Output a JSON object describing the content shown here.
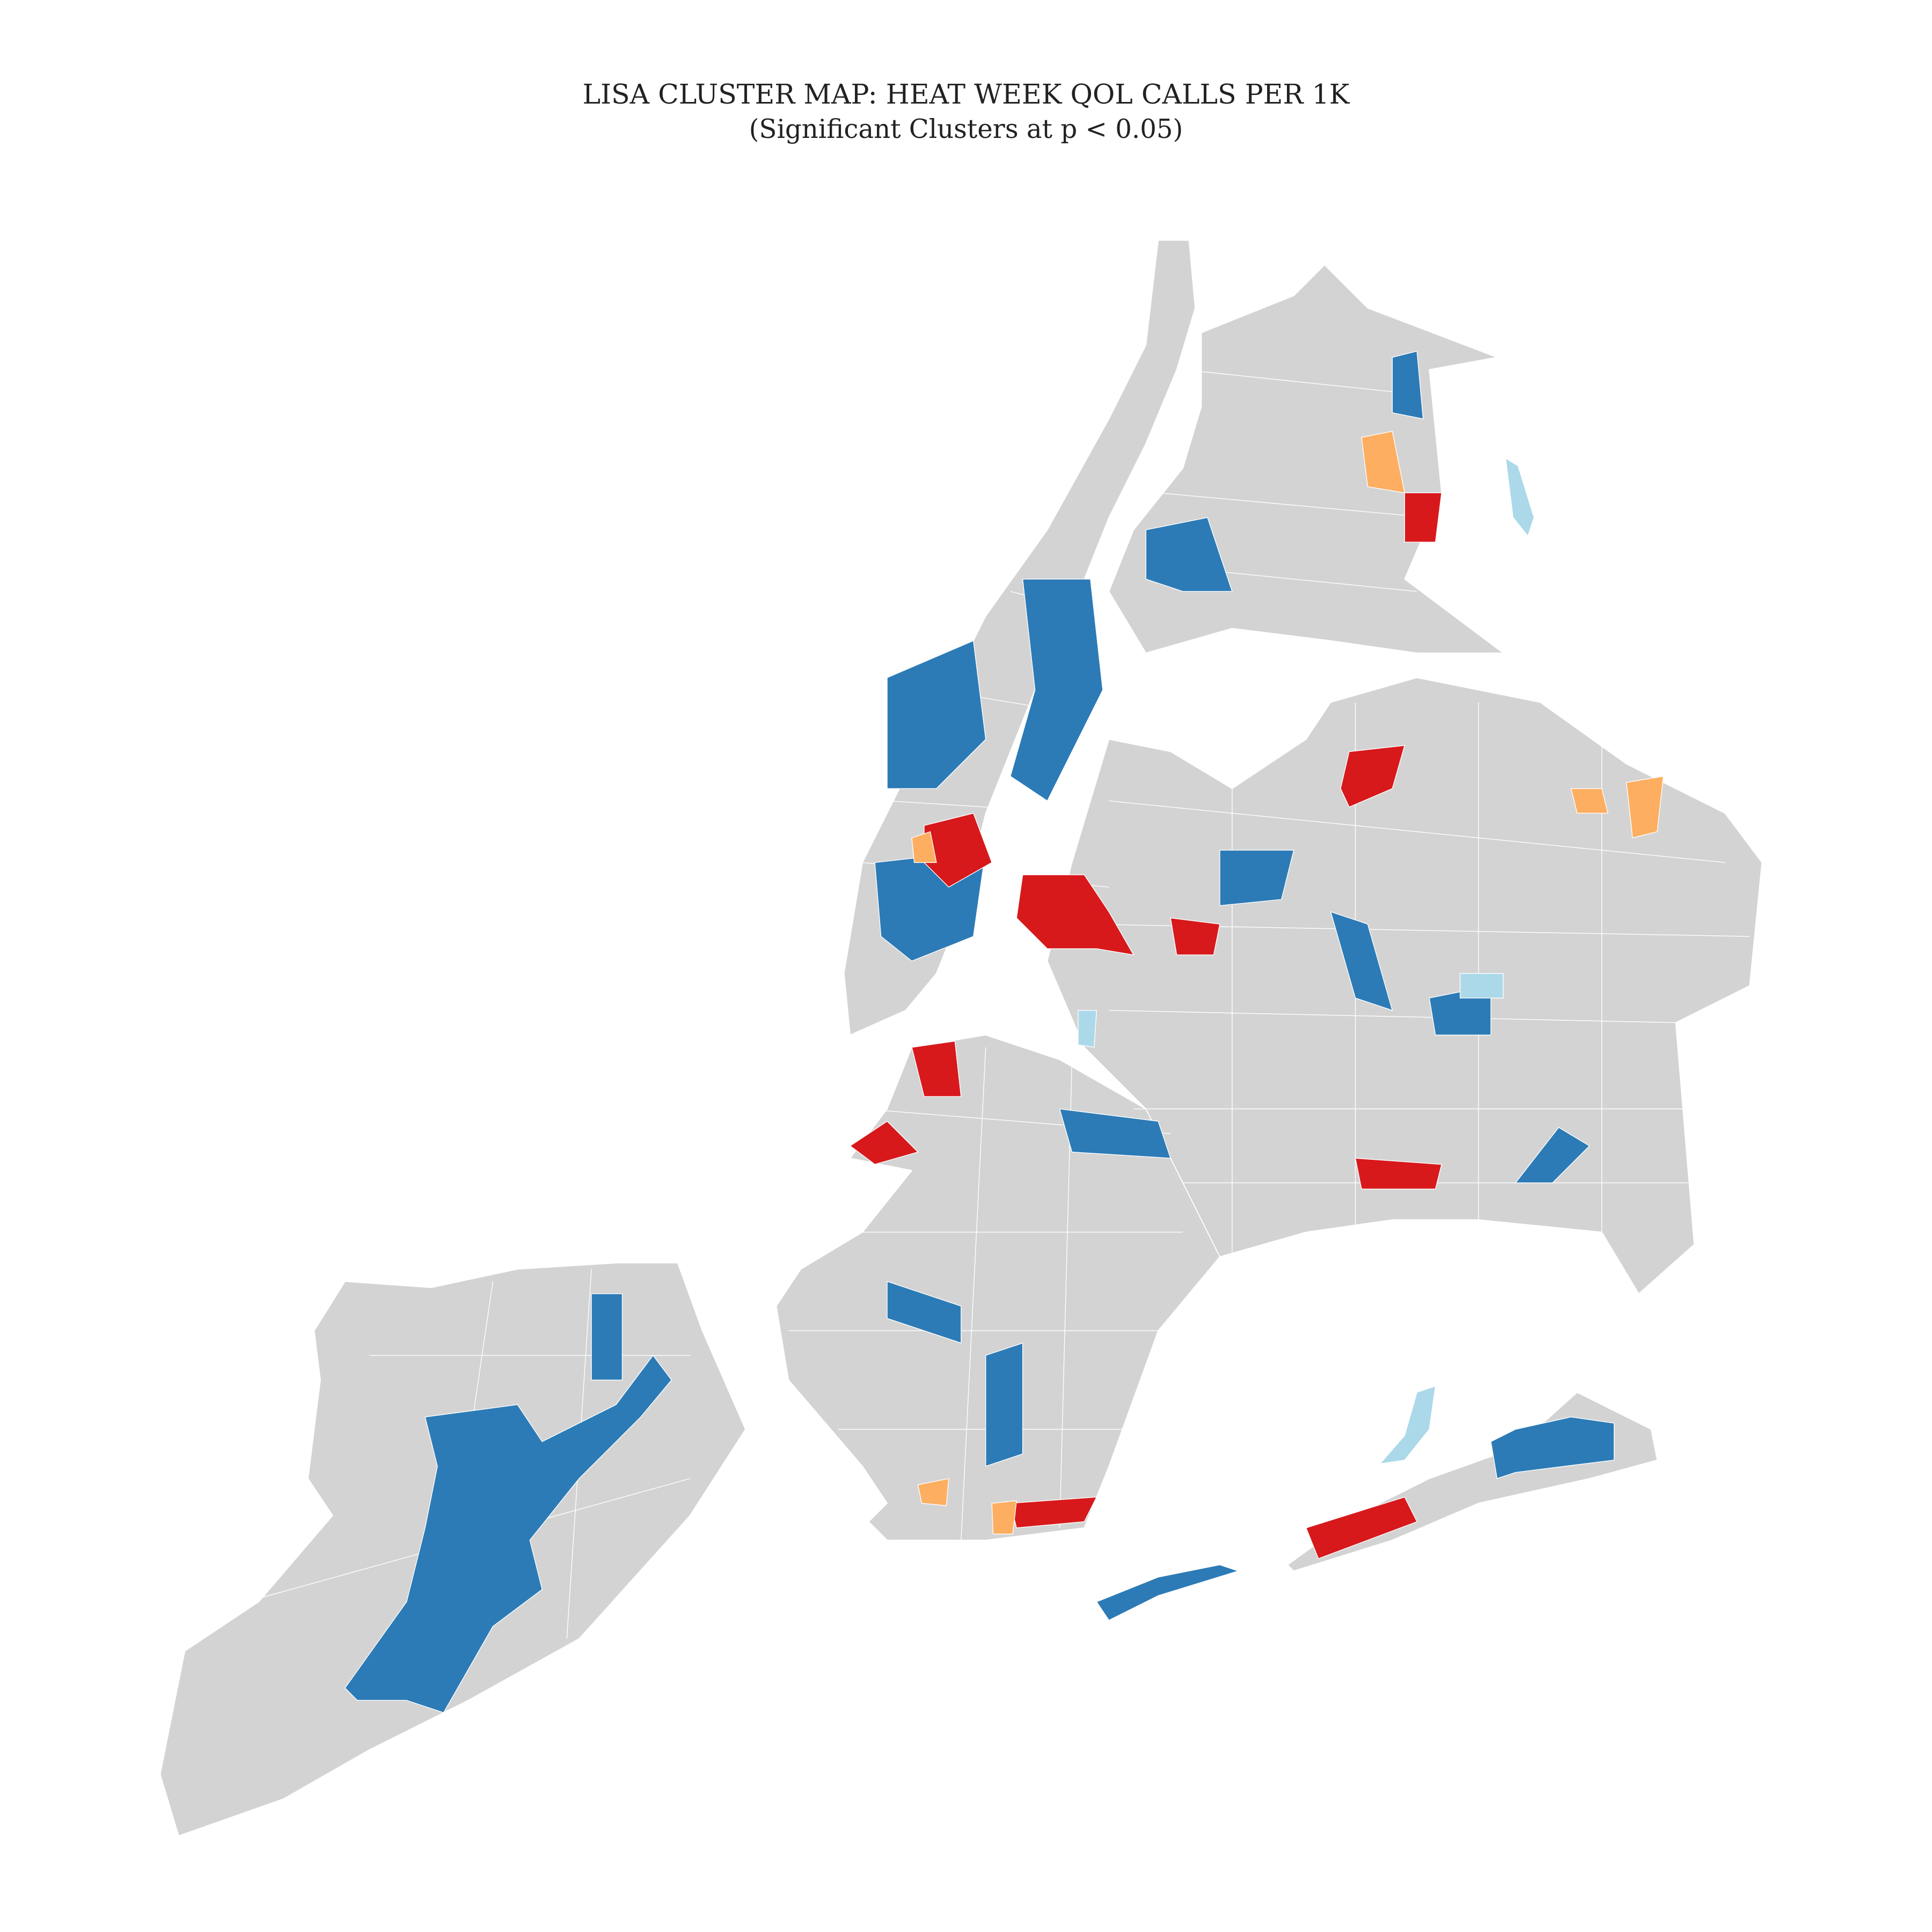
{
  "title": "LISA CLUSTER MAP: HEAT WEEK QOL CALLS PER 1K",
  "subtitle": "(Significant Clusters at p < 0.05)"
}
